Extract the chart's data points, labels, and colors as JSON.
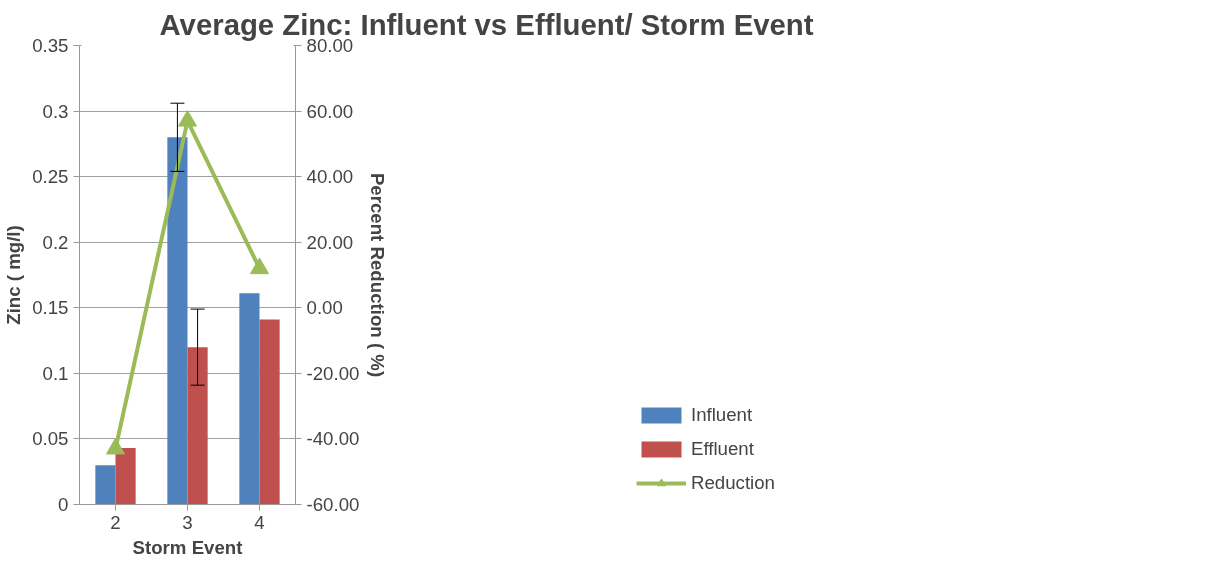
{
  "chart_data": {
    "type": "bar",
    "title": "Average Zinc: Influent vs Effluent/ Storm Event",
    "xlabel": "Storm Event",
    "ylabel": "Zinc ( mg/l)",
    "y2label": "Percent Reduction ( %)",
    "categories": [
      "2",
      "3",
      "4"
    ],
    "series": [
      {
        "name": "Influent",
        "color": "#4f81bd",
        "values": [
          0.03,
          0.28,
          0.161
        ],
        "errors": [
          null,
          0.026,
          null
        ]
      },
      {
        "name": "Effluent",
        "color": "#c0504d",
        "values": [
          0.043,
          0.12,
          0.141
        ],
        "errors": [
          null,
          0.029,
          null
        ]
      },
      {
        "name": "Reduction",
        "type": "line",
        "axis": "y2",
        "color": "#9bbb59",
        "marker": "triangle",
        "values": [
          -43,
          57,
          12
        ]
      }
    ],
    "ylim": [
      0,
      0.35
    ],
    "yticks": [
      0,
      0.05,
      0.1,
      0.15,
      0.2,
      0.25,
      0.3,
      0.35
    ],
    "y2lim": [
      -60,
      80
    ],
    "y2ticks": [
      {
        "value": -60,
        "label": "-60.00"
      },
      {
        "value": -40,
        "label": "-40.00"
      },
      {
        "value": -20,
        "label": "-20.00"
      },
      {
        "value": 0,
        "label": "0.00"
      },
      {
        "value": 20,
        "label": "20.00"
      },
      {
        "value": 40,
        "label": "40.00"
      },
      {
        "value": 60,
        "label": "60.00"
      },
      {
        "value": 80,
        "label": "80.00"
      }
    ],
    "grid": "y",
    "legend": "right"
  }
}
